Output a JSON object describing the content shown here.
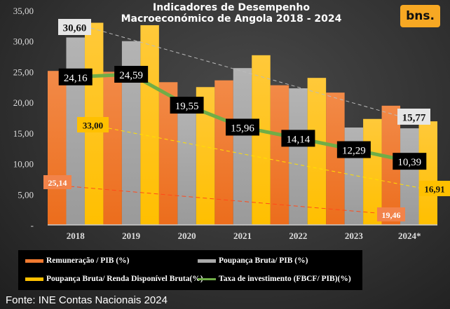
{
  "title_line1": "Indicadores de Desempenho",
  "title_line2": "Macroeconómico de Angola 2018 - 2024",
  "logo": "bns.",
  "source": "Fonte: INE Contas Nacionais 2024",
  "chart_data": {
    "type": "bar",
    "categories": [
      "2018",
      "2019",
      "2020",
      "2021",
      "2022",
      "2023",
      "2024*"
    ],
    "ylim": [
      0,
      35
    ],
    "yticks": [
      "-",
      "5,00",
      "10,00",
      "15,00",
      "20,00",
      "25,00",
      "30,00",
      "35,00"
    ],
    "grid": false,
    "legend_position": "bottom",
    "series": [
      {
        "name": "Remuneração / PIB (%)",
        "type": "bar",
        "color": "#f07a30",
        "values": [
          25.14,
          25.0,
          23.3,
          23.6,
          22.8,
          21.6,
          19.46
        ]
      },
      {
        "name": "Poupança Bruta/ PIB (%)",
        "type": "bar",
        "color": "#a9a9a9",
        "values": [
          30.6,
          30.0,
          19.6,
          25.6,
          22.3,
          15.9,
          15.77
        ]
      },
      {
        "name": "Poupança Bruta/ Renda Disponível Bruta(%)",
        "type": "bar",
        "color": "#ffc000",
        "values": [
          33.0,
          32.6,
          22.5,
          27.7,
          24.0,
          17.3,
          16.91
        ]
      },
      {
        "name": "Taxa de investimento (FBCF/ PIB)(%)",
        "type": "line",
        "color": "#70ad47",
        "values": [
          24.16,
          24.59,
          19.55,
          15.96,
          14.14,
          12.29,
          10.39
        ],
        "labels": [
          "24,16",
          "24,59",
          "19,55",
          "15,96",
          "14,14",
          "12,29",
          "10,39"
        ]
      }
    ],
    "annotations": {
      "gray_start": "30,60",
      "gray_end": "15,77",
      "yellow_start": "33,00",
      "yellow_end": "16,91",
      "orange_start": "25,14",
      "orange_end": "19,46"
    }
  }
}
